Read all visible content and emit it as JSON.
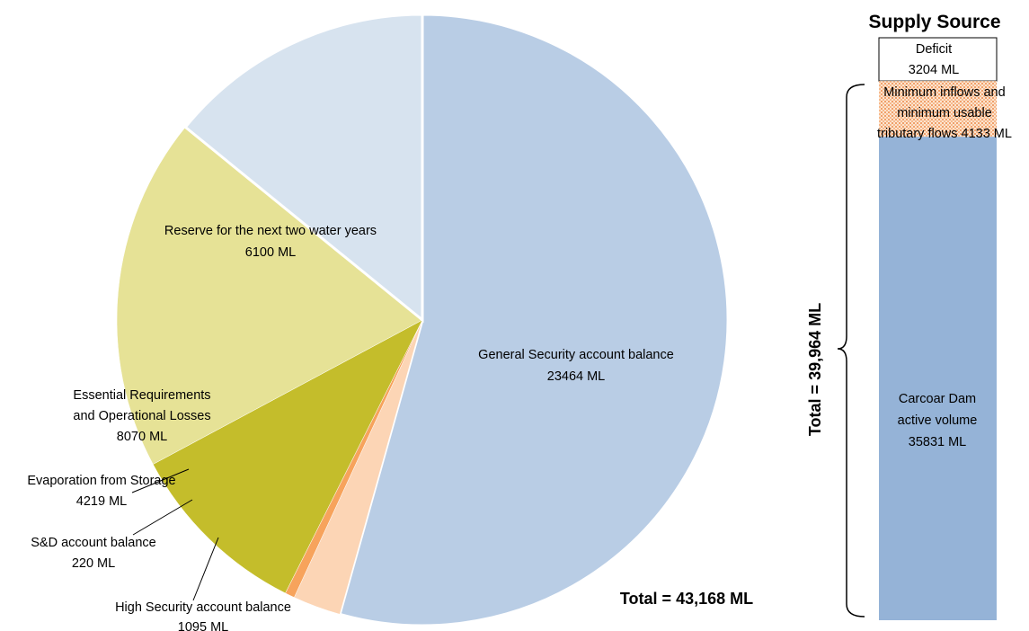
{
  "chart_data": [
    {
      "type": "pie",
      "total_label": "Total = 43,168 ML",
      "slices": [
        {
          "name": "General Security account balance",
          "value_label": "23464 ML",
          "value": 23464,
          "color": "#b9cde5"
        },
        {
          "name": "High Security account balance",
          "value_label": "1095 ML",
          "value": 1095,
          "color": "#fcd5b5"
        },
        {
          "name": "S&D account balance",
          "value_label": "220 ML",
          "value": 220,
          "color": "#f7a35c"
        },
        {
          "name": "Evaporation from Storage",
          "value_label": "4219 ML",
          "value": 4219,
          "color": "#c4bd2b"
        },
        {
          "name_lines": [
            "Essential Requirements",
            "and Operational Losses"
          ],
          "value_label": "8070 ML",
          "value": 8070,
          "color": "#e6e296"
        },
        {
          "name": "Reserve for the next two water years",
          "value_label": "6100 ML",
          "value": 6100,
          "color": "#d7e3ef"
        }
      ]
    },
    {
      "type": "bar",
      "title": "Supply Source",
      "total_label": "Total = 39,964 ML",
      "segments": [
        {
          "lines": [
            "Carcoar Dam",
            "active volume",
            "35831 ML"
          ],
          "value": 35831,
          "color": "#95b3d7"
        },
        {
          "lines": [
            "Minimum inflows and",
            "minimum usable",
            "tributary flows 4133 ML"
          ],
          "value": 4133,
          "color": "#fcd5b5",
          "pattern": "dotted"
        },
        {
          "lines": [
            "Deficit",
            "3204 ML"
          ],
          "value": 3204,
          "color": "#ffffff"
        }
      ]
    }
  ]
}
